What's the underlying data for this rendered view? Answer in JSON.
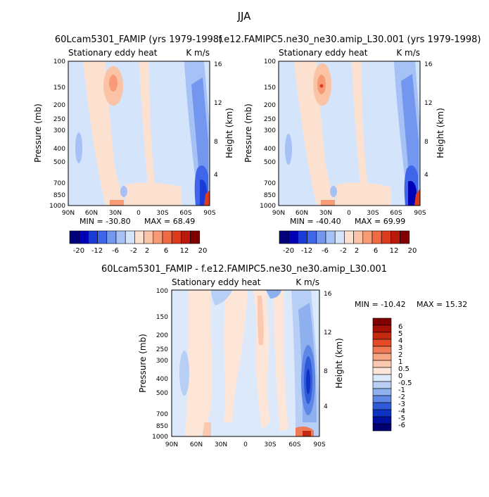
{
  "page_title": "JJA",
  "chart_data": [
    {
      "type": "heatmap",
      "title": "60Lcam5301_FAMIP (yrs 1979-1998)",
      "subtitle_left": "Stationary eddy heat",
      "subtitle_right": "K m/s",
      "xlabel": "",
      "ylabel": "Pressure (mb)",
      "ylabel_right": "Height (km)",
      "x_ticks": [
        "90N",
        "60N",
        "30N",
        "0",
        "30S",
        "60S",
        "90S"
      ],
      "y_ticks": [
        "100",
        "150",
        "200",
        "250",
        "300",
        "400",
        "500",
        "700",
        "850",
        "1000"
      ],
      "y_right_ticks": [
        "16",
        "12",
        "8",
        "4"
      ],
      "stats": {
        "min_label": "MIN = -30.80",
        "max_label": "MAX = 68.49"
      },
      "min": -30.8,
      "max": 68.49,
      "colorbar_labels": [
        "-20",
        "-12",
        "-6",
        "-2",
        "2",
        "6",
        "12",
        "20"
      ]
    },
    {
      "type": "heatmap",
      "title": "f.e12.FAMIPC5.ne30_ne30.amip_L30.001 (yrs 1979-1998)",
      "subtitle_left": "Stationary eddy heat",
      "subtitle_right": "K m/s",
      "xlabel": "",
      "ylabel": "Pressure (mb)",
      "ylabel_right": "Height (km)",
      "x_ticks": [
        "90N",
        "60N",
        "30N",
        "0",
        "30S",
        "60S",
        "90S"
      ],
      "y_ticks": [
        "100",
        "150",
        "200",
        "250",
        "300",
        "400",
        "500",
        "700",
        "850",
        "1000"
      ],
      "y_right_ticks": [
        "16",
        "12",
        "8",
        "4"
      ],
      "stats": {
        "min_label": "MIN = -40.40",
        "max_label": "MAX = 69.99"
      },
      "min": -40.4,
      "max": 69.99,
      "colorbar_labels": [
        "-20",
        "-12",
        "-6",
        "-2",
        "2",
        "6",
        "12",
        "20"
      ]
    },
    {
      "type": "heatmap",
      "title": "60Lcam5301_FAMIP - f.e12.FAMIPC5.ne30_ne30.amip_L30.001",
      "subtitle_left": "Stationary eddy heat",
      "subtitle_right": "K m/s",
      "xlabel": "",
      "ylabel": "Pressure (mb)",
      "ylabel_right": "Height (km)",
      "x_ticks": [
        "90N",
        "60N",
        "30N",
        "0",
        "30S",
        "60S",
        "90S"
      ],
      "y_ticks": [
        "100",
        "150",
        "200",
        "250",
        "300",
        "400",
        "500",
        "700",
        "850",
        "1000"
      ],
      "y_right_ticks": [
        "16",
        "12",
        "8",
        "4"
      ],
      "stats": {
        "min_label": "MIN = -10.42",
        "max_label": "MAX = 15.32"
      },
      "min": -10.42,
      "max": 15.32,
      "colorbar_labels": [
        "6",
        "5",
        "4",
        "3",
        "2",
        "1",
        "0.5",
        "0",
        "-0.5",
        "-1",
        "-2",
        "-3",
        "-4",
        "-5",
        "-6"
      ]
    }
  ],
  "colors": {
    "diverging": [
      "#00007a",
      "#0000b4",
      "#1a3bd6",
      "#3f66e8",
      "#7396ef",
      "#a6c1f5",
      "#d4e4fb",
      "#fde1d0",
      "#fbc3a6",
      "#f89a76",
      "#f06a44",
      "#dd3b1e",
      "#b8190a",
      "#800000"
    ],
    "diff_scale": [
      "#800000",
      "#a50f05",
      "#c42a10",
      "#e24b25",
      "#f07a55",
      "#f7a582",
      "#fbc9b0",
      "#fde5d8",
      "#dce9fb",
      "#b8cff5",
      "#8fb0ef",
      "#5f87e6",
      "#2f5bd9",
      "#0d33c4",
      "#000f9e",
      "#000070"
    ]
  }
}
